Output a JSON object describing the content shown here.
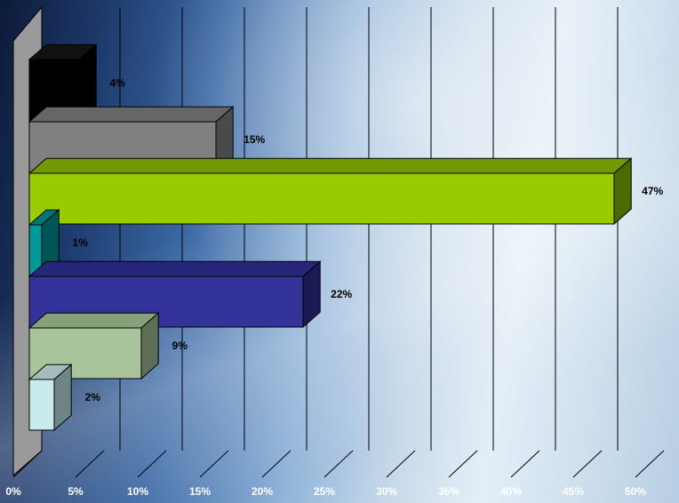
{
  "chart_data": {
    "type": "bar",
    "orientation": "horizontal",
    "three_d": true,
    "xlim": [
      0,
      50
    ],
    "ticks": [
      "0%",
      "5%",
      "10%",
      "15%",
      "20%",
      "25%",
      "30%",
      "35%",
      "40%",
      "45%",
      "50%"
    ],
    "grid": true,
    "legend": "none",
    "bars": [
      {
        "value": 4,
        "label": "4%",
        "color": "#000000",
        "side": "#000000",
        "top": "#111111"
      },
      {
        "value": 15,
        "label": "15%",
        "color": "#808080",
        "side": "#4a4a4a",
        "top": "#666666"
      },
      {
        "value": 47,
        "label": "47%",
        "color": "#99cc00",
        "side": "#4d6a00",
        "top": "#739900"
      },
      {
        "value": 1,
        "label": "1%",
        "color": "#009999",
        "side": "#005656",
        "top": "#007777"
      },
      {
        "value": 22,
        "label": "22%",
        "color": "#333399",
        "side": "#1a1a55",
        "top": "#26267a"
      },
      {
        "value": 9,
        "label": "9%",
        "color": "#a8c49a",
        "side": "#5f6e56",
        "top": "#86a07a"
      },
      {
        "value": 2,
        "label": "2%",
        "color": "#c9eaea",
        "side": "#6f8585",
        "top": "#a4bcbc"
      }
    ],
    "colors": {
      "wall": "#9a9a9a",
      "grid": "#000000",
      "tick_text": "#ffffff",
      "label_text": "#000000"
    }
  }
}
